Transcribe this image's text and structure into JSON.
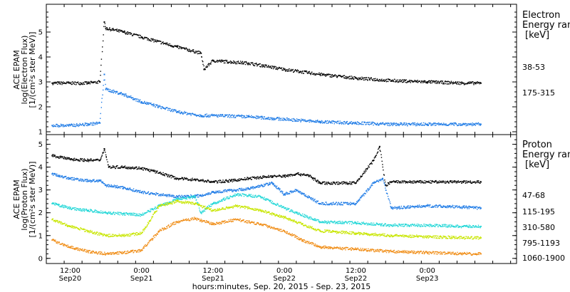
{
  "panels": [
    {
      "ylabel_1": "ACE EPAM",
      "ylabel_2": "log(Electron Flux)",
      "ylabel_3": "[1/(cm²s ster MeV)]",
      "legend_title_1": "Electron",
      "legend_title_2": "Energy ran",
      "legend_unit": "[keV]"
    },
    {
      "ylabel_1": "ACE EPAM",
      "ylabel_2": "log(Proton Flux)",
      "ylabel_3": "[1/(cm²s ster MeV)]",
      "legend_title_1": "Proton",
      "legend_title_2": "Energy ran",
      "legend_unit": "[keV]"
    }
  ],
  "xaxis": {
    "title": "hours:minutes, Sep. 20, 2015 - Sep. 23, 2015",
    "ticks": [
      {
        "t": "12:00",
        "d": "Sep20"
      },
      {
        "t": "0:00",
        "d": "Sep21"
      },
      {
        "t": "12:00",
        "d": "Sep21"
      },
      {
        "t": "0:00",
        "d": "Sep22"
      },
      {
        "t": "12:00",
        "d": "Sep22"
      },
      {
        "t": "0:00",
        "d": "Sep23"
      }
    ]
  },
  "chart_data": [
    {
      "type": "scatter",
      "title": "",
      "xlabel": "hours:minutes, Sep. 20, 2015 - Sep. 23, 2015",
      "ylabel": "ACE EPAM log(Electron Flux) [1/(cm²s ster MeV)]",
      "xlim": [
        "2015-09-20 08:00",
        "2015-09-23 15:00"
      ],
      "ylim": [
        1,
        6
      ],
      "yticks": [
        1,
        2,
        3,
        4,
        5
      ],
      "legend_position": "right",
      "series": [
        {
          "name": "38-53",
          "color": "#000000",
          "x": [
            "2015-09-20 09:00",
            "2015-09-20 12:00",
            "2015-09-20 15:00",
            "2015-09-20 17:00",
            "2015-09-20 17:45",
            "2015-09-20 18:00",
            "2015-09-20 21:00",
            "2015-09-21 00:00",
            "2015-09-21 06:00",
            "2015-09-21 10:00",
            "2015-09-21 10:30",
            "2015-09-21 12:00",
            "2015-09-21 18:00",
            "2015-09-22 00:00",
            "2015-09-22 06:00",
            "2015-09-22 12:00",
            "2015-09-22 18:00",
            "2015-09-23 00:00",
            "2015-09-23 06:00",
            "2015-09-23 09:00"
          ],
          "y": [
            2.95,
            2.95,
            2.95,
            3.0,
            5.4,
            5.15,
            5.0,
            4.8,
            4.4,
            4.15,
            3.5,
            3.85,
            3.75,
            3.5,
            3.3,
            3.15,
            3.05,
            3.0,
            2.95,
            2.95
          ]
        },
        {
          "name": "175-315",
          "color": "#1e7be6",
          "x": [
            "2015-09-20 09:00",
            "2015-09-20 12:00",
            "2015-09-20 15:00",
            "2015-09-20 17:00",
            "2015-09-20 17:45",
            "2015-09-20 18:00",
            "2015-09-20 21:00",
            "2015-09-21 00:00",
            "2015-09-21 06:00",
            "2015-09-21 10:00",
            "2015-09-21 12:00",
            "2015-09-21 18:00",
            "2015-09-22 00:00",
            "2015-09-22 06:00",
            "2015-09-22 12:00",
            "2015-09-22 18:00",
            "2015-09-23 00:00",
            "2015-09-23 06:00",
            "2015-09-23 09:00"
          ],
          "y": [
            1.25,
            1.25,
            1.3,
            1.35,
            3.3,
            2.7,
            2.5,
            2.2,
            1.8,
            1.65,
            1.65,
            1.6,
            1.5,
            1.4,
            1.35,
            1.3,
            1.3,
            1.3,
            1.3
          ]
        }
      ]
    },
    {
      "type": "scatter",
      "title": "",
      "xlabel": "hours:minutes, Sep. 20, 2015 - Sep. 23, 2015",
      "ylabel": "ACE EPAM log(Proton Flux) [1/(cm²s ster MeV)]",
      "xlim": [
        "2015-09-20 08:00",
        "2015-09-23 15:00"
      ],
      "ylim": [
        -0.1,
        5.3
      ],
      "yticks": [
        0,
        1,
        2,
        3,
        4,
        5
      ],
      "legend_position": "right",
      "series": [
        {
          "name": "47-68",
          "color": "#000000",
          "x": [
            "2015-09-20 09:00",
            "2015-09-20 12:00",
            "2015-09-20 15:00",
            "2015-09-20 17:00",
            "2015-09-20 17:45",
            "2015-09-20 18:30",
            "2015-09-20 21:00",
            "2015-09-21 00:00",
            "2015-09-21 03:00",
            "2015-09-21 06:00",
            "2015-09-21 09:00",
            "2015-09-21 12:00",
            "2015-09-21 15:00",
            "2015-09-21 18:00",
            "2015-09-21 22:00",
            "2015-09-22 00:00",
            "2015-09-22 02:00",
            "2015-09-22 04:00",
            "2015-09-22 06:00",
            "2015-09-22 12:00",
            "2015-09-22 15:00",
            "2015-09-22 16:00",
            "2015-09-22 17:00",
            "2015-09-22 18:00",
            "2015-09-23 00:00",
            "2015-09-23 06:00",
            "2015-09-23 09:00"
          ],
          "y": [
            4.5,
            4.35,
            4.3,
            4.3,
            4.8,
            4.0,
            4.0,
            3.95,
            3.75,
            3.5,
            3.45,
            3.35,
            3.4,
            3.5,
            3.6,
            3.6,
            3.7,
            3.65,
            3.3,
            3.3,
            4.3,
            4.9,
            3.2,
            3.35,
            3.35,
            3.35,
            3.35
          ]
        },
        {
          "name": "115-195",
          "color": "#1e7be6",
          "x": [
            "2015-09-20 09:00",
            "2015-09-20 12:00",
            "2015-09-20 15:00",
            "2015-09-20 17:00",
            "2015-09-20 18:00",
            "2015-09-20 21:00",
            "2015-09-21 00:00",
            "2015-09-21 06:00",
            "2015-09-21 10:00",
            "2015-09-21 12:00",
            "2015-09-21 18:00",
            "2015-09-21 22:00",
            "2015-09-22 00:00",
            "2015-09-22 02:00",
            "2015-09-22 06:00",
            "2015-09-22 12:00",
            "2015-09-22 15:00",
            "2015-09-22 16:30",
            "2015-09-22 18:00",
            "2015-09-23 00:00",
            "2015-09-23 06:00",
            "2015-09-23 09:00"
          ],
          "y": [
            3.7,
            3.5,
            3.4,
            3.4,
            3.2,
            3.1,
            2.9,
            2.7,
            2.75,
            2.9,
            3.05,
            3.3,
            2.8,
            3.0,
            2.4,
            2.4,
            3.3,
            3.5,
            2.2,
            2.3,
            2.25,
            2.2
          ]
        },
        {
          "name": "310-580",
          "color": "#22d7d7",
          "x": [
            "2015-09-20 09:00",
            "2015-09-20 12:00",
            "2015-09-20 15:00",
            "2015-09-20 18:00",
            "2015-09-20 21:00",
            "2015-09-21 00:00",
            "2015-09-21 03:00",
            "2015-09-21 06:00",
            "2015-09-21 09:00",
            "2015-09-21 10:00",
            "2015-09-21 12:00",
            "2015-09-21 16:00",
            "2015-09-21 20:00",
            "2015-09-22 00:00",
            "2015-09-22 02:00",
            "2015-09-22 06:00",
            "2015-09-22 12:00",
            "2015-09-22 18:00",
            "2015-09-23 00:00",
            "2015-09-23 06:00",
            "2015-09-23 09:00"
          ],
          "y": [
            2.4,
            2.2,
            2.1,
            2.0,
            1.95,
            1.9,
            2.3,
            2.6,
            2.7,
            2.0,
            2.4,
            2.8,
            2.7,
            2.2,
            2.0,
            1.6,
            1.55,
            1.45,
            1.45,
            1.4,
            1.4
          ]
        },
        {
          "name": "795-1193",
          "color": "#c8e600",
          "x": [
            "2015-09-20 09:00",
            "2015-09-20 12:00",
            "2015-09-20 15:00",
            "2015-09-20 18:00",
            "2015-09-20 21:00",
            "2015-09-21 00:00",
            "2015-09-21 03:00",
            "2015-09-21 06:00",
            "2015-09-21 09:00",
            "2015-09-21 12:00",
            "2015-09-21 16:00",
            "2015-09-21 20:00",
            "2015-09-22 00:00",
            "2015-09-22 03:00",
            "2015-09-22 06:00",
            "2015-09-22 12:00",
            "2015-09-22 18:00",
            "2015-09-23 00:00",
            "2015-09-23 06:00",
            "2015-09-23 09:00"
          ],
          "y": [
            1.7,
            1.4,
            1.2,
            1.0,
            1.0,
            1.1,
            2.3,
            2.5,
            2.4,
            2.1,
            2.3,
            2.1,
            1.8,
            1.5,
            1.2,
            1.1,
            1.0,
            0.95,
            0.9,
            0.9
          ]
        },
        {
          "name": "1060-1900",
          "color": "#f08c14",
          "x": [
            "2015-09-20 09:00",
            "2015-09-20 12:00",
            "2015-09-20 15:00",
            "2015-09-20 18:00",
            "2015-09-20 21:00",
            "2015-09-21 00:00",
            "2015-09-21 03:00",
            "2015-09-21 06:00",
            "2015-09-21 09:00",
            "2015-09-21 12:00",
            "2015-09-21 16:00",
            "2015-09-21 20:00",
            "2015-09-22 00:00",
            "2015-09-22 03:00",
            "2015-09-22 06:00",
            "2015-09-22 12:00",
            "2015-09-22 18:00",
            "2015-09-23 00:00",
            "2015-09-23 06:00",
            "2015-09-23 09:00"
          ],
          "y": [
            0.8,
            0.5,
            0.3,
            0.2,
            0.25,
            0.35,
            1.2,
            1.6,
            1.75,
            1.5,
            1.7,
            1.5,
            1.2,
            0.8,
            0.5,
            0.4,
            0.3,
            0.25,
            0.2,
            0.2
          ]
        }
      ]
    }
  ]
}
